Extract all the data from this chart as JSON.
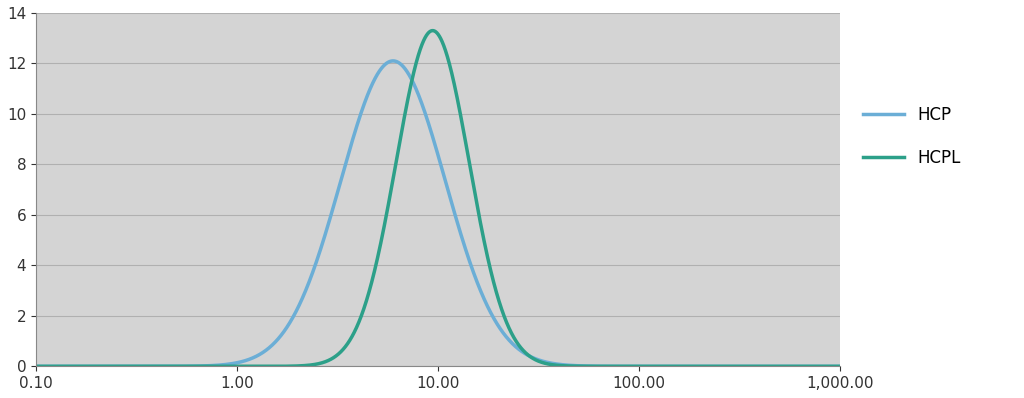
{
  "title": "",
  "xlabel": "",
  "ylabel": "",
  "xlim_log": [
    0.1,
    1000.0
  ],
  "ylim": [
    0,
    14
  ],
  "yticks": [
    0,
    2,
    4,
    6,
    8,
    10,
    12,
    14
  ],
  "xtick_labels": [
    "0.10",
    "1.00",
    "10.00",
    "100.00",
    "1,000.00"
  ],
  "xtick_positions": [
    0.1,
    1.0,
    10.0,
    100.0,
    1000.0
  ],
  "background_color": "#d4d4d4",
  "fig_background_color": "#ffffff",
  "grid_color": "#b0b0b0",
  "hcp": {
    "label": "HCP",
    "color": "#6baed6",
    "mu_log": 2.15,
    "sigma_log": 0.6,
    "peak": 12.1,
    "linewidth": 2.5
  },
  "hcpl": {
    "label": "HCPL",
    "color": "#2ca089",
    "mu_log": 2.42,
    "sigma_log": 0.42,
    "peak": 13.3,
    "linewidth": 2.5
  },
  "legend_fontsize": 12,
  "tick_fontsize": 11
}
